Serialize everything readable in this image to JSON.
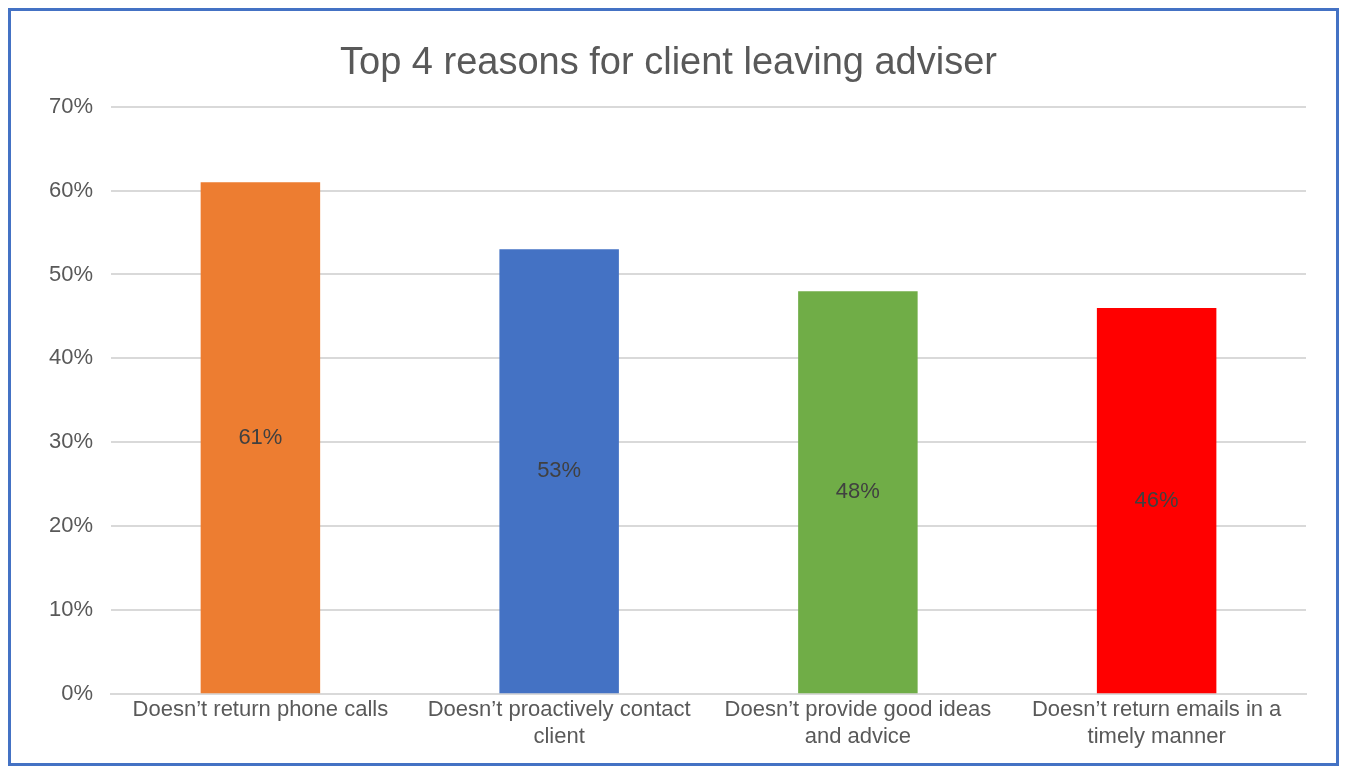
{
  "chart_data": {
    "type": "bar",
    "title": "Top 4 reasons for client leaving adviser",
    "categories": [
      "Doesn’t return phone calls",
      "Doesn’t proactively contact client",
      "Doesn’t provide good ideas and advice",
      "Doesn’t return emails in a timely manner"
    ],
    "values": [
      61,
      53,
      48,
      46
    ],
    "colors": [
      "#ed7d31",
      "#4472c4",
      "#70ad47",
      "#ff0000"
    ],
    "value_labels": [
      "61%",
      "53%",
      "48%",
      "46%"
    ],
    "ylim": [
      0,
      70
    ],
    "yticks": [
      {
        "value": 0,
        "label": "0%"
      },
      {
        "value": 10,
        "label": "10%"
      },
      {
        "value": 20,
        "label": "20%"
      },
      {
        "value": 30,
        "label": "30%"
      },
      {
        "value": 40,
        "label": "40%"
      },
      {
        "value": 50,
        "label": "50%"
      },
      {
        "value": 60,
        "label": "60%"
      },
      {
        "value": 70,
        "label": "70%"
      }
    ],
    "grid": "y",
    "legend": false
  }
}
